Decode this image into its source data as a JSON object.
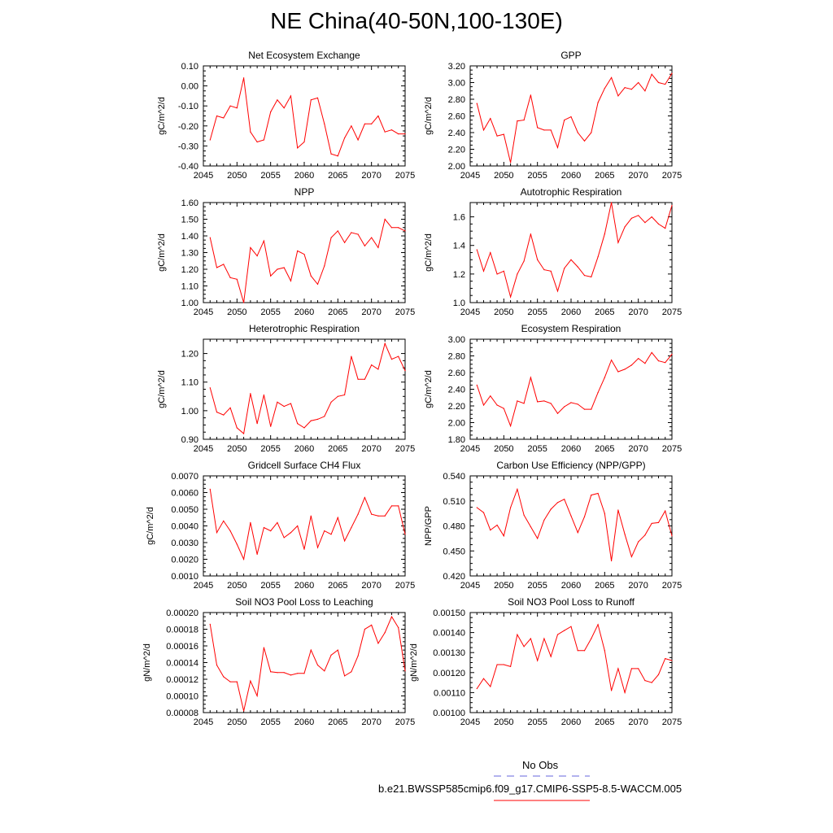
{
  "figure": {
    "title": "NE China(40-50N,100-130E)",
    "line_color": "#ff0000",
    "obs_line_color": "#6666dd"
  },
  "legend": {
    "obs_label": "No Obs",
    "model_label": "b.e21.BWSSP585cmip6.f09_g17.CMIP6-SSP5-8.5-WACCM.005"
  },
  "chart_data": [
    {
      "type": "line",
      "title": "Net Ecosystem Exchange",
      "ylabel": "gC/m^2/d",
      "xlim": [
        2045,
        2075
      ],
      "ylim": [
        -0.4,
        0.1
      ],
      "xticks": [
        2045,
        2050,
        2055,
        2060,
        2065,
        2070,
        2075
      ],
      "yticks": [
        "-0.40",
        "-0.30",
        "-0.20",
        "-0.10",
        "0.00",
        "0.10"
      ],
      "x": [
        2046,
        2047,
        2048,
        2049,
        2050,
        2051,
        2052,
        2053,
        2054,
        2055,
        2056,
        2057,
        2058,
        2059,
        2060,
        2061,
        2062,
        2063,
        2064,
        2065,
        2066,
        2067,
        2068,
        2069,
        2070,
        2071,
        2072,
        2073,
        2074,
        2075
      ],
      "values": [
        -0.27,
        -0.15,
        -0.16,
        -0.1,
        -0.11,
        0.04,
        -0.23,
        -0.28,
        -0.27,
        -0.13,
        -0.07,
        -0.11,
        -0.05,
        -0.31,
        -0.28,
        -0.07,
        -0.06,
        -0.19,
        -0.34,
        -0.35,
        -0.26,
        -0.2,
        -0.27,
        -0.19,
        -0.19,
        -0.15,
        -0.23,
        -0.22,
        -0.24,
        -0.24
      ]
    },
    {
      "type": "line",
      "title": "GPP",
      "ylabel": "gC/m^2/d",
      "xlim": [
        2045,
        2075
      ],
      "ylim": [
        2.0,
        3.2
      ],
      "xticks": [
        2045,
        2050,
        2055,
        2060,
        2065,
        2070,
        2075
      ],
      "yticks": [
        "2.00",
        "2.20",
        "2.40",
        "2.60",
        "2.80",
        "3.00",
        "3.20"
      ],
      "x": [
        2046,
        2047,
        2048,
        2049,
        2050,
        2051,
        2052,
        2053,
        2054,
        2055,
        2056,
        2057,
        2058,
        2059,
        2060,
        2061,
        2062,
        2063,
        2064,
        2065,
        2066,
        2067,
        2068,
        2069,
        2070,
        2071,
        2072,
        2073,
        2074,
        2075
      ],
      "values": [
        2.75,
        2.43,
        2.57,
        2.36,
        2.38,
        2.04,
        2.54,
        2.55,
        2.85,
        2.46,
        2.43,
        2.43,
        2.22,
        2.55,
        2.59,
        2.4,
        2.3,
        2.4,
        2.76,
        2.93,
        3.06,
        2.84,
        2.94,
        2.92,
        3.0,
        2.9,
        3.1,
        3.0,
        2.98,
        3.11
      ]
    },
    {
      "type": "line",
      "title": "NPP",
      "ylabel": "gC/m^2/d",
      "xlim": [
        2045,
        2075
      ],
      "ylim": [
        1.0,
        1.6
      ],
      "xticks": [
        2045,
        2050,
        2055,
        2060,
        2065,
        2070,
        2075
      ],
      "yticks": [
        "1.00",
        "1.10",
        "1.20",
        "1.30",
        "1.40",
        "1.50",
        "1.60"
      ],
      "x": [
        2046,
        2047,
        2048,
        2049,
        2050,
        2051,
        2052,
        2053,
        2054,
        2055,
        2056,
        2057,
        2058,
        2059,
        2060,
        2061,
        2062,
        2063,
        2064,
        2065,
        2066,
        2067,
        2068,
        2069,
        2070,
        2071,
        2072,
        2073,
        2074,
        2075
      ],
      "values": [
        1.39,
        1.21,
        1.23,
        1.15,
        1.14,
        1.0,
        1.33,
        1.28,
        1.37,
        1.16,
        1.2,
        1.21,
        1.13,
        1.31,
        1.29,
        1.16,
        1.11,
        1.22,
        1.39,
        1.43,
        1.36,
        1.42,
        1.41,
        1.34,
        1.39,
        1.33,
        1.5,
        1.45,
        1.45,
        1.43
      ]
    },
    {
      "type": "line",
      "title": "Autotrophic Respiration",
      "ylabel": "gC/m^2/d",
      "xlim": [
        2045,
        2075
      ],
      "ylim": [
        1.0,
        1.7
      ],
      "xticks": [
        2045,
        2050,
        2055,
        2060,
        2065,
        2070,
        2075
      ],
      "yticks": [
        "1.0",
        "1.2",
        "1.4",
        "1.6"
      ],
      "x": [
        2046,
        2047,
        2048,
        2049,
        2050,
        2051,
        2052,
        2053,
        2054,
        2055,
        2056,
        2057,
        2058,
        2059,
        2060,
        2061,
        2062,
        2063,
        2064,
        2065,
        2066,
        2067,
        2068,
        2069,
        2070,
        2071,
        2072,
        2073,
        2074,
        2075
      ],
      "values": [
        1.37,
        1.22,
        1.35,
        1.2,
        1.22,
        1.04,
        1.2,
        1.29,
        1.48,
        1.3,
        1.23,
        1.22,
        1.08,
        1.24,
        1.3,
        1.25,
        1.19,
        1.18,
        1.32,
        1.48,
        1.7,
        1.42,
        1.53,
        1.59,
        1.61,
        1.56,
        1.6,
        1.55,
        1.52,
        1.68
      ]
    },
    {
      "type": "line",
      "title": "Heterotrophic Respiration",
      "ylabel": "gC/m^2/d",
      "xlim": [
        2045,
        2075
      ],
      "ylim": [
        0.9,
        1.25
      ],
      "xticks": [
        2045,
        2050,
        2055,
        2060,
        2065,
        2070,
        2075
      ],
      "yticks": [
        "0.90",
        "1.00",
        "1.10",
        "1.20"
      ],
      "x": [
        2046,
        2047,
        2048,
        2049,
        2050,
        2051,
        2052,
        2053,
        2054,
        2055,
        2056,
        2057,
        2058,
        2059,
        2060,
        2061,
        2062,
        2063,
        2064,
        2065,
        2066,
        2067,
        2068,
        2069,
        2070,
        2071,
        2072,
        2073,
        2074,
        2075
      ],
      "values": [
        1.08,
        0.995,
        0.985,
        1.01,
        0.94,
        0.92,
        1.06,
        0.955,
        1.055,
        0.945,
        1.03,
        1.015,
        1.025,
        0.955,
        0.94,
        0.965,
        0.97,
        0.98,
        1.03,
        1.05,
        1.055,
        1.19,
        1.11,
        1.11,
        1.16,
        1.145,
        1.235,
        1.18,
        1.19,
        1.14
      ]
    },
    {
      "type": "line",
      "title": "Ecosystem Respiration",
      "ylabel": "gC/m^2/d",
      "xlim": [
        2045,
        2075
      ],
      "ylim": [
        1.8,
        3.0
      ],
      "xticks": [
        2045,
        2050,
        2055,
        2060,
        2065,
        2070,
        2075
      ],
      "yticks": [
        "1.80",
        "2.00",
        "2.20",
        "2.40",
        "2.60",
        "2.80",
        "3.00"
      ],
      "x": [
        2046,
        2047,
        2048,
        2049,
        2050,
        2051,
        2052,
        2053,
        2054,
        2055,
        2056,
        2057,
        2058,
        2059,
        2060,
        2061,
        2062,
        2063,
        2064,
        2065,
        2066,
        2067,
        2068,
        2069,
        2070,
        2071,
        2072,
        2073,
        2074,
        2075
      ],
      "values": [
        2.45,
        2.21,
        2.32,
        2.21,
        2.17,
        1.96,
        2.26,
        2.23,
        2.54,
        2.25,
        2.26,
        2.23,
        2.11,
        2.19,
        2.24,
        2.22,
        2.16,
        2.16,
        2.36,
        2.54,
        2.75,
        2.61,
        2.64,
        2.69,
        2.77,
        2.71,
        2.84,
        2.74,
        2.72,
        2.82
      ]
    },
    {
      "type": "line",
      "title": "Gridcell Surface CH4 Flux",
      "ylabel": "gC/m^2/d",
      "xlim": [
        2045,
        2075
      ],
      "ylim": [
        0.001,
        0.007
      ],
      "xticks": [
        2045,
        2050,
        2055,
        2060,
        2065,
        2070,
        2075
      ],
      "yticks": [
        "0.0010",
        "0.0020",
        "0.0030",
        "0.0040",
        "0.0050",
        "0.0060",
        "0.0070"
      ],
      "x": [
        2046,
        2047,
        2048,
        2049,
        2050,
        2051,
        2052,
        2053,
        2054,
        2055,
        2056,
        2057,
        2058,
        2059,
        2060,
        2061,
        2062,
        2063,
        2064,
        2065,
        2066,
        2067,
        2068,
        2069,
        2070,
        2071,
        2072,
        2073,
        2074,
        2075
      ],
      "values": [
        0.0062,
        0.0036,
        0.0043,
        0.0037,
        0.0029,
        0.002,
        0.0042,
        0.0023,
        0.0039,
        0.0037,
        0.0042,
        0.0033,
        0.0036,
        0.004,
        0.0026,
        0.0046,
        0.0027,
        0.0037,
        0.0035,
        0.0045,
        0.0031,
        0.0039,
        0.0047,
        0.0057,
        0.0047,
        0.0046,
        0.0046,
        0.0052,
        0.0052,
        0.0035
      ]
    },
    {
      "type": "line",
      "title": "Carbon Use Efficiency (NPP/GPP)",
      "ylabel": "NPP/GPP",
      "xlim": [
        2045,
        2075
      ],
      "ylim": [
        0.42,
        0.54
      ],
      "xticks": [
        2045,
        2050,
        2055,
        2060,
        2065,
        2070,
        2075
      ],
      "yticks": [
        "0.420",
        "0.450",
        "0.480",
        "0.510",
        "0.540"
      ],
      "x": [
        2046,
        2047,
        2048,
        2049,
        2050,
        2051,
        2052,
        2053,
        2054,
        2055,
        2056,
        2057,
        2058,
        2059,
        2060,
        2061,
        2062,
        2063,
        2064,
        2065,
        2066,
        2067,
        2068,
        2069,
        2070,
        2071,
        2072,
        2073,
        2074,
        2075
      ],
      "values": [
        0.502,
        0.496,
        0.475,
        0.481,
        0.468,
        0.502,
        0.524,
        0.493,
        0.479,
        0.465,
        0.487,
        0.5,
        0.508,
        0.512,
        0.492,
        0.472,
        0.491,
        0.517,
        0.519,
        0.495,
        0.438,
        0.499,
        0.47,
        0.443,
        0.461,
        0.469,
        0.483,
        0.484,
        0.498,
        0.468
      ]
    },
    {
      "type": "line",
      "title": "Soil NO3 Pool Loss to Leaching",
      "ylabel": "gN/m^2/d",
      "xlim": [
        2045,
        2075
      ],
      "ylim": [
        8e-05,
        0.0002
      ],
      "xticks": [
        2045,
        2050,
        2055,
        2060,
        2065,
        2070,
        2075
      ],
      "yticks": [
        "0.00008",
        "0.00010",
        "0.00012",
        "0.00014",
        "0.00016",
        "0.00018",
        "0.00020"
      ],
      "x": [
        2046,
        2047,
        2048,
        2049,
        2050,
        2051,
        2052,
        2053,
        2054,
        2055,
        2056,
        2057,
        2058,
        2059,
        2060,
        2061,
        2062,
        2063,
        2064,
        2065,
        2066,
        2067,
        2068,
        2069,
        2070,
        2071,
        2072,
        2073,
        2074,
        2075
      ],
      "values": [
        0.000186,
        0.000137,
        0.000123,
        0.000117,
        0.000117,
        8.2e-05,
        0.000118,
        0.0001,
        0.000158,
        0.000129,
        0.000128,
        0.000128,
        0.000125,
        0.000127,
        0.000127,
        0.000155,
        0.000137,
        0.00013,
        0.000149,
        0.000155,
        0.000124,
        0.000129,
        0.000148,
        0.00018,
        0.000185,
        0.000163,
        0.000176,
        0.000195,
        0.000182,
        0.00013
      ]
    },
    {
      "type": "line",
      "title": "Soil NO3 Pool Loss to Runoff",
      "ylabel": "gN/m^2/d",
      "xlim": [
        2045,
        2075
      ],
      "ylim": [
        0.001,
        0.0015
      ],
      "xticks": [
        2045,
        2050,
        2055,
        2060,
        2065,
        2070,
        2075
      ],
      "yticks": [
        "0.00100",
        "0.00110",
        "0.00120",
        "0.00130",
        "0.00140",
        "0.00150"
      ],
      "x": [
        2046,
        2047,
        2048,
        2049,
        2050,
        2051,
        2052,
        2053,
        2054,
        2055,
        2056,
        2057,
        2058,
        2059,
        2060,
        2061,
        2062,
        2063,
        2064,
        2065,
        2066,
        2067,
        2068,
        2069,
        2070,
        2071,
        2072,
        2073,
        2074,
        2075
      ],
      "values": [
        0.00112,
        0.00117,
        0.00113,
        0.00124,
        0.00124,
        0.00123,
        0.00139,
        0.00133,
        0.00137,
        0.00126,
        0.00137,
        0.00128,
        0.00139,
        0.00141,
        0.00143,
        0.00131,
        0.00131,
        0.00137,
        0.00144,
        0.00131,
        0.00111,
        0.00122,
        0.0011,
        0.00122,
        0.00122,
        0.00116,
        0.00115,
        0.00119,
        0.00127,
        0.00126
      ]
    }
  ]
}
